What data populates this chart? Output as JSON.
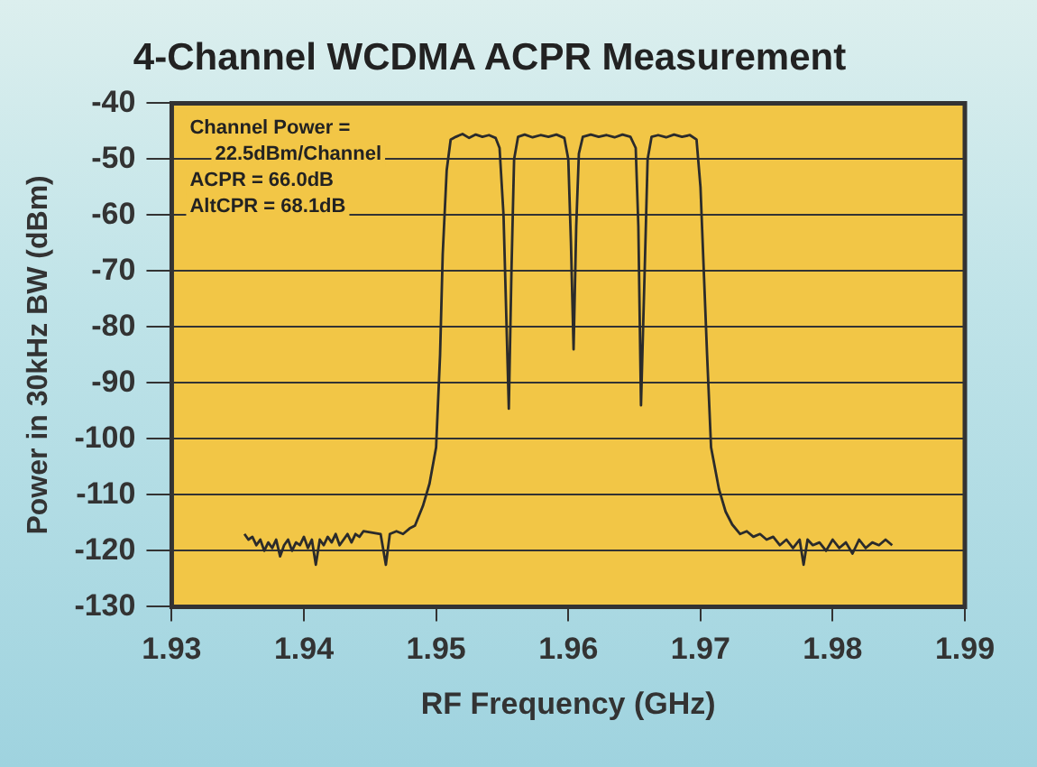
{
  "chart_data": {
    "type": "line",
    "title": "4-Channel WCDMA ACPR Measurement",
    "xlabel": "RF Frequency (GHz)",
    "ylabel": "Power in 30kHz BW (dBm)",
    "annotations": [
      "Channel Power =",
      "22.5dBm/Channel",
      "ACPR = 66.0dB",
      "AltCPR = 68.1dB"
    ],
    "xlim": [
      1.93,
      1.99
    ],
    "xticks": [
      1.93,
      1.94,
      1.95,
      1.96,
      1.97,
      1.98,
      1.99
    ],
    "ylim": [
      -130,
      -40
    ],
    "yticks": [
      -130,
      -120,
      -110,
      -100,
      -90,
      -80,
      -70,
      -60,
      -50,
      -40
    ],
    "grid": "y",
    "legend": false,
    "marker": "none",
    "line_style": "solid",
    "series": [
      {
        "color": "#2b2b2b",
        "x": [
          1.9355,
          1.9358,
          1.9361,
          1.9364,
          1.9367,
          1.937,
          1.9373,
          1.9376,
          1.9379,
          1.9382,
          1.9385,
          1.9388,
          1.9391,
          1.9394,
          1.9397,
          1.94,
          1.9403,
          1.9406,
          1.9409,
          1.9412,
          1.9415,
          1.9418,
          1.9421,
          1.9424,
          1.9427,
          1.943,
          1.9433,
          1.9436,
          1.9439,
          1.9442,
          1.9445,
          1.9458,
          1.9462,
          1.9465,
          1.947,
          1.9475,
          1.948,
          1.9484,
          1.949,
          1.9495,
          1.95,
          1.9503,
          1.9505,
          1.9508,
          1.9511,
          1.9515,
          1.952,
          1.9525,
          1.953,
          1.9535,
          1.954,
          1.9545,
          1.9548,
          1.9551,
          1.9555,
          1.9557,
          1.9559,
          1.9562,
          1.9567,
          1.9573,
          1.9579,
          1.9585,
          1.9591,
          1.9597,
          1.96,
          1.9602,
          1.9604,
          1.9606,
          1.9608,
          1.9611,
          1.9617,
          1.9623,
          1.9629,
          1.9635,
          1.9641,
          1.9647,
          1.9651,
          1.9653,
          1.9655,
          1.9658,
          1.966,
          1.9663,
          1.9668,
          1.9674,
          1.968,
          1.9686,
          1.9692,
          1.9697,
          1.97,
          1.9702,
          1.9705,
          1.9708,
          1.9714,
          1.9719,
          1.9724,
          1.973,
          1.9735,
          1.974,
          1.9745,
          1.975,
          1.9755,
          1.976,
          1.9765,
          1.977,
          1.9775,
          1.9778,
          1.9781,
          1.9785,
          1.979,
          1.9795,
          1.98,
          1.9805,
          1.981,
          1.9815,
          1.982,
          1.9825,
          1.983,
          1.9835,
          1.984,
          1.9845
        ],
        "values": [
          -117,
          -118,
          -117.5,
          -119,
          -118,
          -120,
          -118.5,
          -119.5,
          -118,
          -121,
          -119,
          -118,
          -120,
          -118.5,
          -119,
          -117.5,
          -119.5,
          -118,
          -122.5,
          -118,
          -119,
          -117.5,
          -118.5,
          -117,
          -119,
          -118,
          -117,
          -118.5,
          -117,
          -117.5,
          -116.5,
          -117,
          -122.5,
          -117,
          -116.5,
          -117,
          -116,
          -115.5,
          -112,
          -108,
          -101.5,
          -85,
          -67,
          -52,
          -46.5,
          -46,
          -45.5,
          -46.2,
          -45.6,
          -46,
          -45.7,
          -46.2,
          -48,
          -60,
          -94.6,
          -70,
          -50,
          -46,
          -45.6,
          -46.1,
          -45.7,
          -46,
          -45.6,
          -46.2,
          -50,
          -65,
          -84,
          -62,
          -49,
          -46,
          -45.6,
          -46,
          -45.7,
          -46.1,
          -45.6,
          -46,
          -48,
          -62,
          -94,
          -68,
          -50,
          -46,
          -45.7,
          -46.1,
          -45.6,
          -46,
          -45.7,
          -46.5,
          -55,
          -67,
          -85,
          -101.5,
          -109,
          -113,
          -115.3,
          -117,
          -116.5,
          -117.5,
          -117,
          -118,
          -117.5,
          -119,
          -118,
          -119.5,
          -118,
          -122.5,
          -118,
          -119,
          -118.5,
          -120,
          -118,
          -119.5,
          -118.5,
          -120.5,
          -118,
          -119.5,
          -118.5,
          -119,
          -118,
          -119
        ]
      }
    ]
  }
}
